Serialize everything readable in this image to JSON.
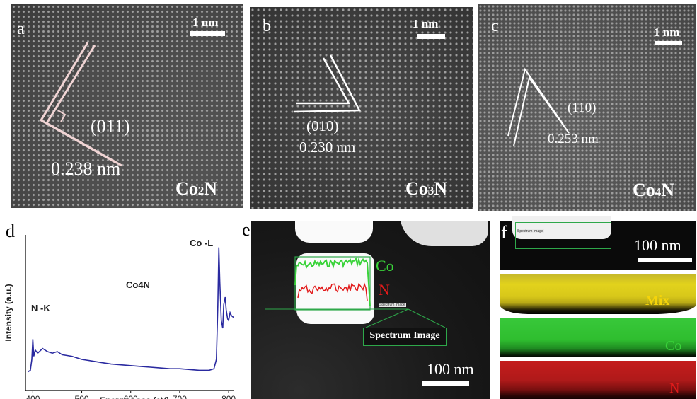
{
  "panels": {
    "a": {
      "letter": "a",
      "scale": "1 nm",
      "plane": "(011)",
      "spacing": "0.238 nm",
      "phase_main": "Co",
      "phase_sub": "2",
      "phase_tail": "N"
    },
    "b": {
      "letter": "b",
      "scale": "1 nm",
      "plane": "(010)",
      "spacing": "0.230 nm",
      "phase_main": "Co",
      "phase_sub": "3",
      "phase_tail": "N"
    },
    "c": {
      "letter": "c",
      "scale": "1 nm",
      "plane": "(110)",
      "spacing": "0.253 nm",
      "phase_main": "Co",
      "phase_sub": "4",
      "phase_tail": "N"
    },
    "d": {
      "letter": "d"
    },
    "e": {
      "letter": "e",
      "legend_co": "Co",
      "legend_n": "N",
      "spectrum_label": "Spectrum Image",
      "tiny_label": "Spectrum Image",
      "scale": "100 nm"
    },
    "f": {
      "letter": "f",
      "tiny_label": "Spectrum Image",
      "scale": "100 nm",
      "maps": [
        "Mix",
        "Co",
        "N"
      ]
    }
  },
  "chart_data": {
    "type": "line",
    "title": "",
    "inset_label": "Co4N",
    "xlabel": "Energy Loss (eV)",
    "ylabel": "Intensity (a.u.)",
    "xlim": [
      385,
      810
    ],
    "xticks": [
      400,
      500,
      600,
      700,
      800
    ],
    "series": [
      {
        "color": "#2a2aa0",
        "x": [
          390,
          395,
          398,
          400,
          402,
          405,
          410,
          420,
          430,
          440,
          450,
          460,
          480,
          500,
          520,
          540,
          560,
          580,
          600,
          620,
          640,
          660,
          680,
          700,
          720,
          740,
          760,
          770,
          775,
          778,
          780,
          782,
          785,
          788,
          790,
          793,
          795,
          798,
          800,
          803,
          806,
          810
        ],
        "y": [
          0.12,
          0.13,
          0.2,
          0.33,
          0.22,
          0.26,
          0.24,
          0.27,
          0.25,
          0.24,
          0.25,
          0.23,
          0.22,
          0.2,
          0.19,
          0.18,
          0.17,
          0.165,
          0.16,
          0.155,
          0.15,
          0.145,
          0.14,
          0.14,
          0.135,
          0.13,
          0.13,
          0.14,
          0.2,
          0.55,
          0.92,
          0.7,
          0.45,
          0.4,
          0.55,
          0.6,
          0.52,
          0.46,
          0.45,
          0.5,
          0.48,
          0.47
        ]
      }
    ],
    "annotations": [
      "N -K",
      "Co -L"
    ]
  },
  "profile_colors": {
    "co": "#3ad33a",
    "n": "#e21b1b",
    "box": "#2ea84a"
  }
}
